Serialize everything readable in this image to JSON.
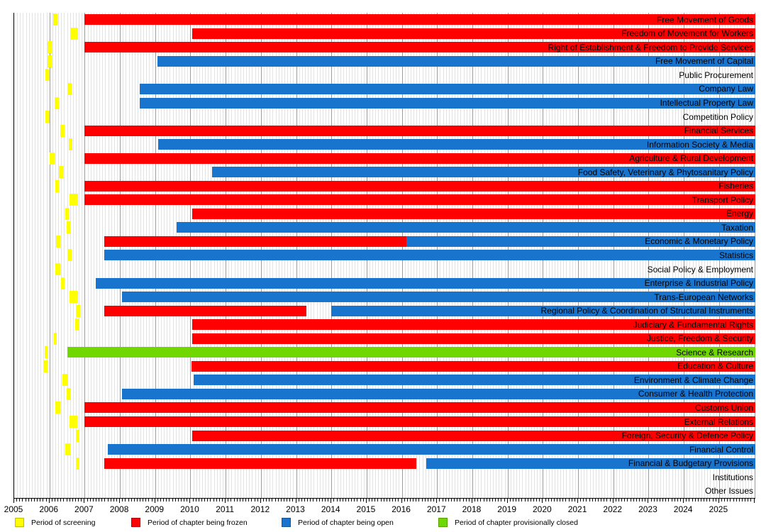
{
  "chart_data": {
    "type": "gantt",
    "x_axis": {
      "min_year": 2005,
      "max_year": 2026.03,
      "year_tick_labels": [
        "2005",
        "2006",
        "2007",
        "2008",
        "2009",
        "2010",
        "2011",
        "2012",
        "2013",
        "2014",
        "2015",
        "2016",
        "2017",
        "2018",
        "2019",
        "2020",
        "2021",
        "2022",
        "2023",
        "2024",
        "2025"
      ],
      "minor_tick_interval": "month",
      "grid": "on"
    },
    "status_colors": {
      "screening": "#ffff00",
      "frozen": "#ff0000",
      "open": "#1874cd",
      "closed": "#70d800"
    },
    "rows": [
      {
        "label": "Free Movement of Goods",
        "segments": [
          {
            "status": "screening",
            "start": 2006.11,
            "end": 2006.23
          },
          {
            "status": "frozen",
            "start": 2007.0,
            "end": 2026.03
          }
        ]
      },
      {
        "label": "Freedom of Movement for Workers",
        "segments": [
          {
            "status": "screening",
            "start": 2006.59,
            "end": 2006.81
          },
          {
            "status": "frozen",
            "start": 2010.05,
            "end": 2026.03
          }
        ]
      },
      {
        "label": "Right of Establishment & Freedom to Provide Services",
        "segments": [
          {
            "status": "screening",
            "start": 2005.95,
            "end": 2006.07
          },
          {
            "status": "frozen",
            "start": 2007.0,
            "end": 2026.03
          }
        ]
      },
      {
        "label": "Free Movement of Capital",
        "segments": [
          {
            "status": "screening",
            "start": 2005.95,
            "end": 2006.07
          },
          {
            "status": "open",
            "start": 2009.06,
            "end": 2026.03
          }
        ]
      },
      {
        "label": "Public Procurement",
        "segments": [
          {
            "status": "screening",
            "start": 2005.89,
            "end": 2005.99
          }
        ]
      },
      {
        "label": "Company Law",
        "segments": [
          {
            "status": "screening",
            "start": 2006.51,
            "end": 2006.63
          },
          {
            "status": "open",
            "start": 2008.56,
            "end": 2026.03
          }
        ]
      },
      {
        "label": "Intellectual Property Law",
        "segments": [
          {
            "status": "screening",
            "start": 2006.15,
            "end": 2006.27
          },
          {
            "status": "open",
            "start": 2008.56,
            "end": 2026.03
          }
        ]
      },
      {
        "label": "Competition Policy",
        "segments": [
          {
            "status": "screening",
            "start": 2005.89,
            "end": 2006.01
          }
        ]
      },
      {
        "label": "Financial Services",
        "segments": [
          {
            "status": "screening",
            "start": 2006.31,
            "end": 2006.43
          },
          {
            "status": "frozen",
            "start": 2007.0,
            "end": 2026.03
          }
        ]
      },
      {
        "label": "Information Society & Media",
        "segments": [
          {
            "status": "screening",
            "start": 2006.55,
            "end": 2006.65
          },
          {
            "status": "open",
            "start": 2009.08,
            "end": 2026.03
          }
        ]
      },
      {
        "label": "Agriculture & Rural Development",
        "segments": [
          {
            "status": "screening",
            "start": 2006.01,
            "end": 2006.15
          },
          {
            "status": "frozen",
            "start": 2007.0,
            "end": 2026.03
          }
        ]
      },
      {
        "label": "Food Safety, Veterinary & Phytosanitary Policy",
        "segments": [
          {
            "status": "screening",
            "start": 2006.27,
            "end": 2006.39
          },
          {
            "status": "open",
            "start": 2010.61,
            "end": 2026.03
          }
        ]
      },
      {
        "label": "Fisheries",
        "segments": [
          {
            "status": "screening",
            "start": 2006.17,
            "end": 2006.27
          },
          {
            "status": "frozen",
            "start": 2007.0,
            "end": 2026.03
          }
        ]
      },
      {
        "label": "Transport Policy",
        "segments": [
          {
            "status": "screening",
            "start": 2006.57,
            "end": 2006.81
          },
          {
            "status": "frozen",
            "start": 2007.0,
            "end": 2026.03
          }
        ]
      },
      {
        "label": "Energy",
        "segments": [
          {
            "status": "screening",
            "start": 2006.45,
            "end": 2006.55
          },
          {
            "status": "frozen",
            "start": 2010.05,
            "end": 2026.03
          }
        ]
      },
      {
        "label": "Taxation",
        "segments": [
          {
            "status": "screening",
            "start": 2006.49,
            "end": 2006.59
          },
          {
            "status": "open",
            "start": 2009.61,
            "end": 2026.03
          }
        ]
      },
      {
        "label": "Economic & Monetary Policy",
        "segments": [
          {
            "status": "screening",
            "start": 2006.19,
            "end": 2006.31
          },
          {
            "status": "frozen",
            "start": 2007.56,
            "end": 2016.13
          },
          {
            "status": "open",
            "start": 2016.13,
            "end": 2026.03
          }
        ]
      },
      {
        "label": "Statistics",
        "segments": [
          {
            "status": "screening",
            "start": 2006.53,
            "end": 2006.63
          },
          {
            "status": "open",
            "start": 2007.56,
            "end": 2026.03
          }
        ]
      },
      {
        "label": "Social Policy & Employment",
        "segments": [
          {
            "status": "screening",
            "start": 2006.17,
            "end": 2006.31
          }
        ]
      },
      {
        "label": "Enterprise & Industrial Policy",
        "segments": [
          {
            "status": "screening",
            "start": 2006.33,
            "end": 2006.43
          },
          {
            "status": "open",
            "start": 2007.31,
            "end": 2026.03
          }
        ]
      },
      {
        "label": "Trans-European Networks",
        "segments": [
          {
            "status": "screening",
            "start": 2006.57,
            "end": 2006.81
          },
          {
            "status": "open",
            "start": 2008.06,
            "end": 2026.03
          }
        ]
      },
      {
        "label": "Regional Policy & Coordination of Structural Instruments",
        "segments": [
          {
            "status": "screening",
            "start": 2006.77,
            "end": 2006.87
          },
          {
            "status": "frozen",
            "start": 2007.56,
            "end": 2013.29
          },
          {
            "status": "open",
            "start": 2013.99,
            "end": 2026.03
          }
        ]
      },
      {
        "label": "Judiciary & Fundamental Rights",
        "segments": [
          {
            "status": "screening",
            "start": 2006.73,
            "end": 2006.85
          },
          {
            "status": "frozen",
            "start": 2010.05,
            "end": 2026.03
          }
        ]
      },
      {
        "label": "Justice, Freedom & Security",
        "segments": [
          {
            "status": "screening",
            "start": 2006.13,
            "end": 2006.21
          },
          {
            "status": "frozen",
            "start": 2010.05,
            "end": 2026.03
          }
        ]
      },
      {
        "label": "Science & Research",
        "segments": [
          {
            "status": "screening",
            "start": 2005.87,
            "end": 2005.95
          },
          {
            "status": "closed",
            "start": 2006.51,
            "end": 2026.03
          }
        ]
      },
      {
        "label": "Education & Culture",
        "segments": [
          {
            "status": "screening",
            "start": 2005.85,
            "end": 2005.95
          },
          {
            "status": "frozen",
            "start": 2010.03,
            "end": 2026.03
          }
        ]
      },
      {
        "label": "Environment & Climate Change",
        "segments": [
          {
            "status": "screening",
            "start": 2006.37,
            "end": 2006.51
          },
          {
            "status": "open",
            "start": 2010.09,
            "end": 2026.03
          }
        ]
      },
      {
        "label": "Consumer & Health Protection",
        "segments": [
          {
            "status": "screening",
            "start": 2006.49,
            "end": 2006.61
          },
          {
            "status": "open",
            "start": 2008.06,
            "end": 2026.03
          }
        ]
      },
      {
        "label": "Customs Union",
        "segments": [
          {
            "status": "screening",
            "start": 2006.17,
            "end": 2006.31
          },
          {
            "status": "frozen",
            "start": 2007.0,
            "end": 2026.03
          }
        ]
      },
      {
        "label": "External Relations",
        "segments": [
          {
            "status": "screening",
            "start": 2006.57,
            "end": 2006.79
          },
          {
            "status": "frozen",
            "start": 2007.0,
            "end": 2026.03
          }
        ]
      },
      {
        "label": "Foreign, Security & Defence Policy",
        "segments": [
          {
            "status": "screening",
            "start": 2006.75,
            "end": 2006.85
          },
          {
            "status": "frozen",
            "start": 2010.05,
            "end": 2026.03
          }
        ]
      },
      {
        "label": "Financial Control",
        "segments": [
          {
            "status": "screening",
            "start": 2006.45,
            "end": 2006.59
          },
          {
            "status": "open",
            "start": 2007.66,
            "end": 2026.03
          }
        ]
      },
      {
        "label": "Financial & Budgetary Provisions",
        "segments": [
          {
            "status": "screening",
            "start": 2006.77,
            "end": 2006.85
          },
          {
            "status": "frozen",
            "start": 2007.56,
            "end": 2016.41
          },
          {
            "status": "open",
            "start": 2016.69,
            "end": 2026.03
          }
        ]
      },
      {
        "label": "Institutions",
        "segments": []
      },
      {
        "label": "Other Issues",
        "segments": []
      }
    ],
    "legend": {
      "position": "bottom",
      "items": [
        {
          "status": "screening",
          "label": "Period of screening"
        },
        {
          "status": "frozen",
          "label": "Period of chapter being frozen"
        },
        {
          "status": "open",
          "label": "Period of chapter being open"
        },
        {
          "status": "closed",
          "label": "Period of chapter provisionally closed"
        }
      ]
    }
  }
}
